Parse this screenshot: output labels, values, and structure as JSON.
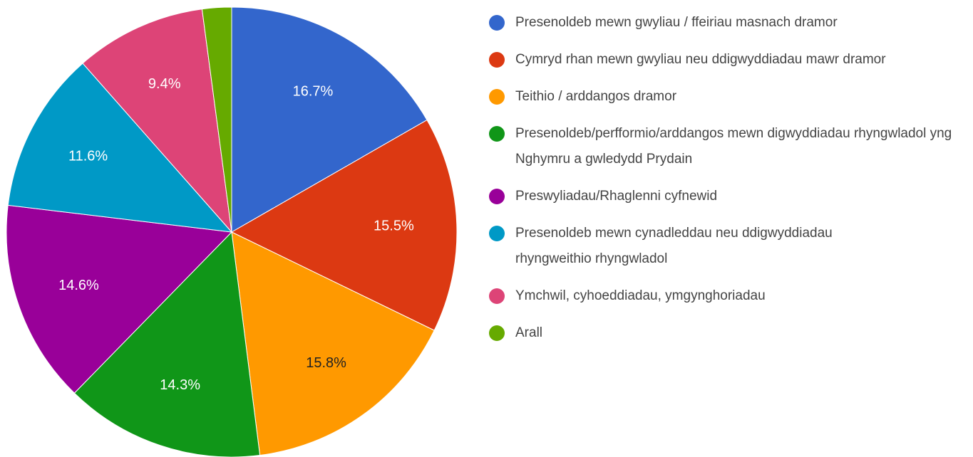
{
  "chart_data": {
    "type": "pie",
    "categories": [
      "Presenoldeb mewn gwyliau / ffeiriau masnach dramor",
      "Cymryd rhan mewn gwyliau neu ddigwyddiadau mawr dramor",
      "Teithio / arddangos dramor",
      "Presenoldeb/perfformio/arddangos mewn digwyddiadau rhyngwladol yng Nghymru a gwledydd Prydain",
      "Preswyliadau/Rhaglenni cyfnewid",
      "Presenoldeb mewn cynadleddau neu ddigwyddiadau rhyngweithio rhyngwladol",
      "Ymchwil, cyhoeddiadau, ymgynghoriadau",
      "Arall"
    ],
    "values": [
      16.7,
      15.5,
      15.8,
      14.3,
      14.6,
      11.6,
      9.4,
      2.1
    ],
    "value_labels": [
      "16.7%",
      "15.5%",
      "15.8%",
      "14.3%",
      "14.6%",
      "11.6%",
      "9.4%",
      null
    ],
    "colors": [
      "#3366cc",
      "#dc3912",
      "#ff9900",
      "#109618",
      "#990099",
      "#0099c6",
      "#dd4477",
      "#66aa00"
    ],
    "legend": "right"
  }
}
